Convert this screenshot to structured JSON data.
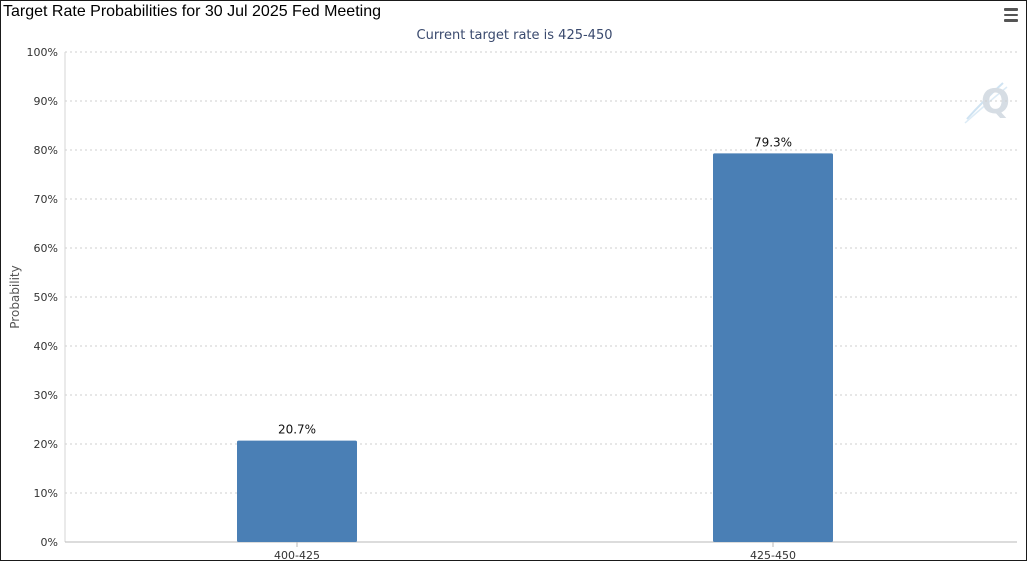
{
  "page": {
    "title": "Target Rate Probabilities for 30 Jul 2025 Fed Meeting",
    "subtitle": "Current target rate is 425-450",
    "menu_icon": "hamburger-menu-icon",
    "logo_icon": "q-watermark-icon"
  },
  "chart_data": {
    "type": "bar",
    "title": "Target Rate Probabilities for 30 Jul 2025 Fed Meeting",
    "subtitle": "Current target rate is 425-450",
    "categories": [
      "400-425",
      "425-450"
    ],
    "values": [
      20.7,
      79.3
    ],
    "data_labels": [
      "20.7%",
      "79.3%"
    ],
    "ylabel": "Probability",
    "xlabel": "",
    "ylim": [
      0,
      100
    ],
    "y_ticks": [
      "0%",
      "10%",
      "20%",
      "30%",
      "40%",
      "50%",
      "60%",
      "70%",
      "80%",
      "90%",
      "100%"
    ],
    "grid": true,
    "bar_color": "#4a7fb5"
  }
}
